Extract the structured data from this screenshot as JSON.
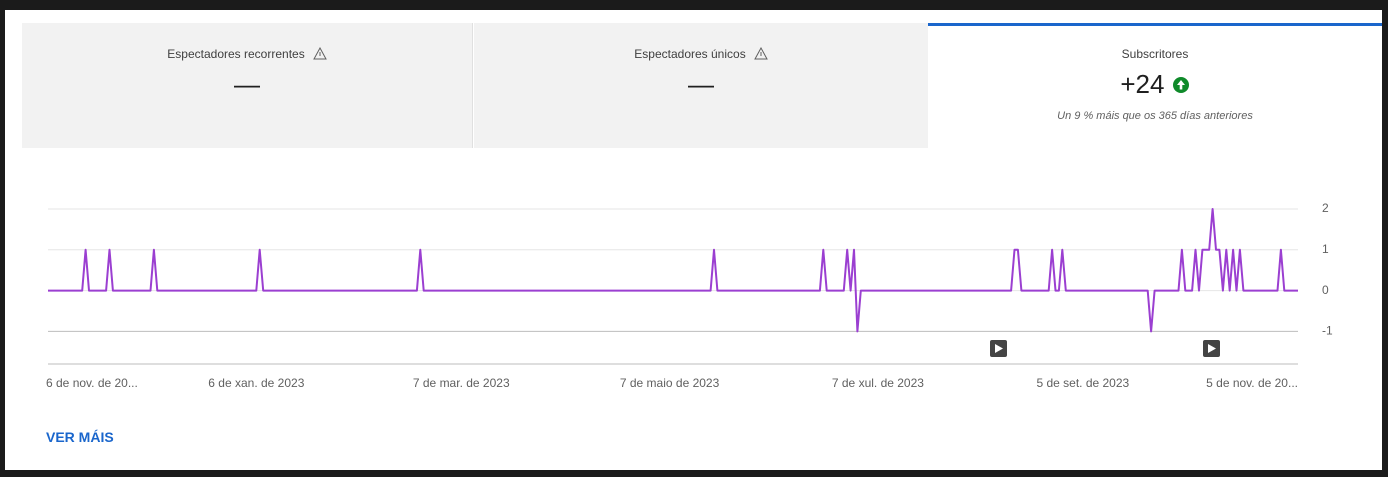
{
  "tabs": [
    {
      "title": "Espectadores recorrentes",
      "value": "—"
    },
    {
      "title": "Espectadores únicos",
      "value": "—"
    },
    {
      "title": "Subscritores",
      "value": "+24",
      "note": "Un 9 % máis que os 365 días anteriores"
    }
  ],
  "link": "VER MÁIS",
  "chart_data": {
    "type": "line",
    "color": "#9b3fd1",
    "grid": true,
    "x": [
      0,
      10,
      11,
      12,
      17,
      18,
      19,
      30,
      31,
      32,
      61,
      62,
      63,
      108,
      109,
      110,
      194,
      195,
      196,
      226,
      227,
      228,
      233,
      234,
      235,
      236,
      237,
      238,
      282,
      283,
      284,
      285,
      293,
      294,
      295,
      296,
      297,
      298,
      322,
      323,
      324,
      331,
      332,
      333,
      335,
      336,
      337,
      338,
      339,
      340,
      341,
      342,
      343,
      344,
      345,
      346,
      347,
      348,
      349,
      350,
      360,
      361,
      362,
      366
    ],
    "values": [
      0,
      0,
      1,
      0,
      0,
      1,
      0,
      0,
      1,
      0,
      0,
      1,
      0,
      0,
      1,
      0,
      0,
      1,
      0,
      0,
      1,
      0,
      0,
      1,
      0,
      1,
      -1,
      0,
      0,
      1,
      1,
      0,
      0,
      1,
      0,
      0,
      1,
      0,
      0,
      -1,
      0,
      0,
      1,
      0,
      0,
      1,
      0,
      1,
      1,
      1,
      2,
      1,
      1,
      0,
      1,
      0,
      1,
      0,
      1,
      0,
      0,
      1,
      0,
      0
    ],
    "xlim": [
      0,
      366
    ],
    "xticks": [
      {
        "value": 0,
        "label": "6 de nov. de 20..."
      },
      {
        "value": 61,
        "label": "6 de xan. de 2023"
      },
      {
        "value": 121,
        "label": "7 de mar. de 2023"
      },
      {
        "value": 182,
        "label": "7 de maio de 2023"
      },
      {
        "value": 243,
        "label": "7 de xul. de 2023"
      },
      {
        "value": 303,
        "label": "5 de set. de 2023"
      },
      {
        "value": 364,
        "label": "5 de nov. de 20..."
      }
    ],
    "ylim": [
      -1.8,
      2
    ],
    "yticks": [
      -1,
      0,
      1,
      2
    ]
  }
}
